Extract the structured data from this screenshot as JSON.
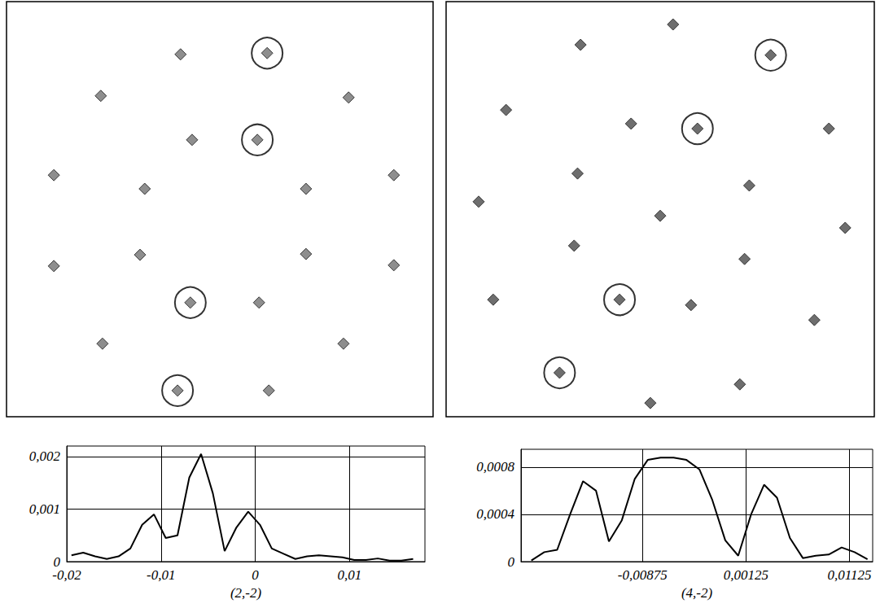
{
  "chart_data": [
    {
      "type": "scatter",
      "xlim": [
        0,
        100
      ],
      "ylim": [
        0,
        100
      ],
      "tick_labels": false,
      "grid": false,
      "series": [
        {
          "marker": "diamond",
          "color": "#7a7a7a",
          "x": [
            40.8,
            61.1,
            22.1,
            80.2,
            43.5,
            58.8,
            11.1,
            32.4,
            70.2,
            90.8,
            11.1,
            31.3,
            70.2,
            90.8,
            43.1,
            59.2,
            22.5,
            79.0,
            40.1,
            61.5
          ],
          "values": [
            87.3,
            87.6,
            77.3,
            76.9,
            66.7,
            66.7,
            58.2,
            54.9,
            54.9,
            58.2,
            36.3,
            39.0,
            39.2,
            36.5,
            27.5,
            27.5,
            17.6,
            17.6,
            6.3,
            6.3
          ]
        },
        {
          "marker": "circle",
          "color": "#000000",
          "x": [
            61.1,
            58.8,
            43.1,
            40.1
          ],
          "values": [
            87.6,
            66.7,
            27.5,
            6.3
          ]
        }
      ]
    },
    {
      "type": "scatter",
      "xlim": [
        0,
        100
      ],
      "ylim": [
        0,
        100
      ],
      "tick_labels": false,
      "grid": false,
      "series": [
        {
          "marker": "diamond",
          "color": "#555555",
          "x": [
            53.0,
            31.4,
            75.8,
            14.0,
            43.2,
            58.7,
            89.4,
            30.7,
            70.8,
            50.0,
            7.6,
            93.2,
            29.9,
            69.7,
            40.5,
            57.2,
            11.0,
            86.0,
            26.5,
            68.6,
            47.7
          ],
          "values": [
            94.5,
            89.6,
            87.1,
            73.9,
            70.6,
            69.4,
            69.4,
            58.6,
            55.7,
            48.4,
            51.8,
            45.5,
            41.2,
            38.0,
            28.2,
            26.9,
            28.2,
            23.3,
            10.6,
            7.8,
            3.3
          ]
        },
        {
          "marker": "circle",
          "color": "#000000",
          "x": [
            75.8,
            58.7,
            40.5,
            26.5
          ],
          "values": [
            87.1,
            69.4,
            28.2,
            10.6
          ]
        }
      ]
    },
    {
      "type": "line",
      "xlabel": "(2,-2)",
      "color": "#000000",
      "grid": true,
      "x": [
        -0.0195,
        -0.01825,
        -0.017,
        -0.01575,
        -0.0145,
        -0.01325,
        -0.012,
        -0.01075,
        -0.0095,
        -0.00825,
        -0.007,
        -0.00575,
        -0.0045,
        -0.00325,
        -0.002,
        -0.00075,
        0.0005,
        0.00175,
        0.003,
        0.00425,
        0.0055,
        0.00675,
        0.008,
        0.00925,
        0.0105,
        0.01175,
        0.013,
        0.01425,
        0.0155,
        0.01675
      ],
      "values": [
        0.00012,
        0.00017,
        0.0001,
        5e-05,
        0.0001,
        0.00025,
        0.0007,
        0.0009,
        0.00045,
        0.0005,
        0.0016,
        0.00205,
        0.0013,
        0.0002,
        0.00065,
        0.00095,
        0.0007,
        0.00025,
        0.00015,
        5e-05,
        0.0001,
        0.00012,
        0.0001,
        8e-05,
        3e-05,
        3e-05,
        6e-05,
        2e-05,
        2e-05,
        5e-05
      ],
      "xlim": [
        -0.02,
        0.018
      ],
      "xticks": [
        {
          "value": -0.02,
          "label": "-0,02"
        },
        {
          "value": -0.01,
          "label": "-0,01"
        },
        0,
        {
          "value": 0.01,
          "label": "0,01"
        }
      ],
      "ylim": [
        0,
        0.0022
      ],
      "yticks": [
        0,
        {
          "value": 0.001,
          "label": "0,001"
        },
        {
          "value": 0.002,
          "label": "0,002"
        }
      ]
    },
    {
      "type": "line",
      "xlabel": "(4,-2)",
      "color": "#000000",
      "grid": true,
      "x": [
        -0.0195,
        -0.01825,
        -0.017,
        -0.01575,
        -0.0145,
        -0.01325,
        -0.012,
        -0.01075,
        -0.0095,
        -0.00825,
        -0.007,
        -0.00575,
        -0.0045,
        -0.00325,
        -0.002,
        -0.00075,
        0.0005,
        0.00175,
        0.003,
        0.00425,
        0.0055,
        0.00675,
        0.008,
        0.00925,
        0.0105,
        0.01175,
        0.013
      ],
      "values": [
        1e-05,
        8e-05,
        0.0001,
        0.0004,
        0.00068,
        0.0006,
        0.00017,
        0.00035,
        0.0007,
        0.00086,
        0.00088,
        0.00088,
        0.00086,
        0.00078,
        0.00052,
        0.00018,
        5e-05,
        0.0004,
        0.00065,
        0.00054,
        0.0002,
        3e-05,
        5e-05,
        6e-05,
        0.00012,
        8e-05,
        2e-05
      ],
      "xlim": [
        -0.0205,
        0.0135
      ],
      "xticks": [
        {
          "value": -0.00875,
          "label": "-0,00875"
        },
        {
          "value": 0.00125,
          "label": "0,00125"
        },
        {
          "value": 0.01125,
          "label": "0,01125"
        }
      ],
      "ylim": [
        0,
        0.00095
      ],
      "yticks": [
        0,
        {
          "value": 0.0004,
          "label": "0,0004"
        },
        {
          "value": 0.0008,
          "label": "0,0008"
        }
      ]
    }
  ]
}
